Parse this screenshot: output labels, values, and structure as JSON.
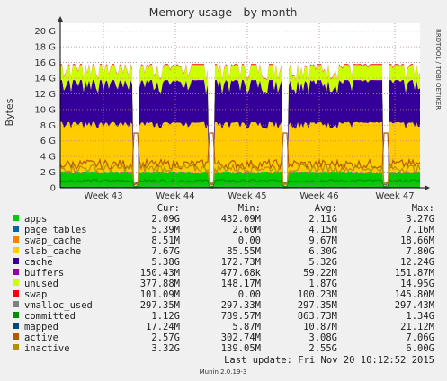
{
  "chart_data": {
    "type": "area",
    "title": "Memory usage - by month",
    "ylabel": "Bytes",
    "xlabel": "",
    "side_label": "RRDTOOL / TOBI OETIKER",
    "ylim": [
      0,
      21
    ],
    "yticks": [
      "0",
      "2 G",
      "4 G",
      "6 G",
      "8 G",
      "10 G",
      "12 G",
      "14 G",
      "16 G",
      "18 G",
      "20 G"
    ],
    "ytick_values": [
      0,
      2,
      4,
      6,
      8,
      10,
      12,
      14,
      16,
      18,
      20
    ],
    "xlim": [
      0,
      1
    ],
    "xticks": [
      "Week 43",
      "Week 44",
      "Week 45",
      "Week 46",
      "Week 47"
    ],
    "xtick_positions": [
      0.12,
      0.32,
      0.52,
      0.72,
      0.93
    ],
    "grid": true,
    "series_stack_in_order": [
      {
        "name": "apps",
        "color": "#00cc00",
        "level": 2.1
      },
      {
        "name": "page_tables",
        "color": "#0066b3",
        "level": 0.005
      },
      {
        "name": "swap_cache",
        "color": "#ff8000",
        "level": 0.01
      },
      {
        "name": "slab_cache",
        "color": "#ffcc00",
        "level": 6.3
      },
      {
        "name": "cache",
        "color": "#330099",
        "level": 5.3
      },
      {
        "name": "buffers",
        "color": "#990099",
        "level": 0.06
      },
      {
        "name": "unused",
        "color": "#ccff00",
        "level": 1.9
      },
      {
        "name": "swap",
        "color": "#ff0000",
        "level": 0.1
      },
      {
        "name": "vmalloc_used",
        "color": "#808080",
        "line": true
      },
      {
        "name": "committed",
        "color": "#008f00",
        "line": true
      },
      {
        "name": "mapped",
        "color": "#00487d",
        "line": true
      },
      {
        "name": "active",
        "color": "#b35a00",
        "line": true
      },
      {
        "name": "inactive",
        "color": "#b38f00",
        "line": true
      }
    ]
  },
  "legend": {
    "headers": [
      "Cur:",
      "Min:",
      "Avg:",
      "Max:"
    ],
    "rows": [
      {
        "name": "apps",
        "color": "#00cc00",
        "cur": "2.09G",
        "min": "432.09M",
        "avg": "2.11G",
        "max": "3.27G"
      },
      {
        "name": "page_tables",
        "color": "#0066b3",
        "cur": "5.39M",
        "min": "2.60M",
        "avg": "4.15M",
        "max": "7.16M"
      },
      {
        "name": "swap_cache",
        "color": "#ff8000",
        "cur": "8.51M",
        "min": "0.00",
        "avg": "9.67M",
        "max": "18.66M"
      },
      {
        "name": "slab_cache",
        "color": "#ffcc00",
        "cur": "7.67G",
        "min": "85.55M",
        "avg": "6.30G",
        "max": "7.80G"
      },
      {
        "name": "cache",
        "color": "#330099",
        "cur": "5.38G",
        "min": "172.73M",
        "avg": "5.32G",
        "max": "12.24G"
      },
      {
        "name": "buffers",
        "color": "#990099",
        "cur": "150.43M",
        "min": "477.68k",
        "avg": "59.22M",
        "max": "151.87M"
      },
      {
        "name": "unused",
        "color": "#ccff00",
        "cur": "377.88M",
        "min": "148.17M",
        "avg": "1.87G",
        "max": "14.95G"
      },
      {
        "name": "swap",
        "color": "#ff0000",
        "cur": "101.09M",
        "min": "0.00",
        "avg": "100.23M",
        "max": "145.80M"
      },
      {
        "name": "vmalloc_used",
        "color": "#808080",
        "cur": "297.35M",
        "min": "297.33M",
        "avg": "297.35M",
        "max": "297.43M"
      },
      {
        "name": "committed",
        "color": "#008f00",
        "cur": "1.12G",
        "min": "789.57M",
        "avg": "863.73M",
        "max": "1.34G"
      },
      {
        "name": "mapped",
        "color": "#00487d",
        "cur": "17.24M",
        "min": "5.87M",
        "avg": "10.87M",
        "max": "21.12M"
      },
      {
        "name": "active",
        "color": "#b35a00",
        "cur": "2.57G",
        "min": "302.74M",
        "avg": "3.08G",
        "max": "7.06G"
      },
      {
        "name": "inactive",
        "color": "#b38f00",
        "cur": "3.32G",
        "min": "139.05M",
        "avg": "2.55G",
        "max": "6.00G"
      }
    ]
  },
  "footer": {
    "last_update": "Last update:  Fri Nov 20 10:12:52 2015",
    "version": "Munin 2.0.19-3"
  }
}
